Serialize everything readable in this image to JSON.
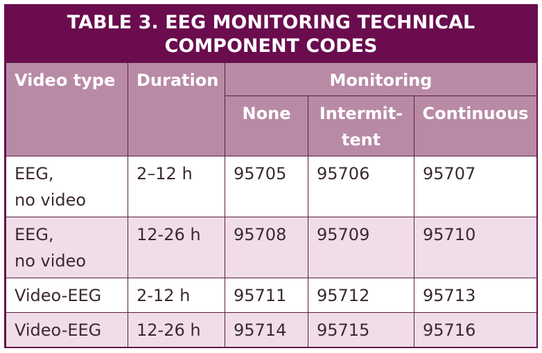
{
  "title": {
    "line1": "TABLE 3. EEG MONITORING TECHNICAL",
    "line2": "COMPONENT CODES"
  },
  "headers": {
    "video_type": "Video type",
    "duration": "Duration",
    "monitoring": "Monitoring",
    "none": "None",
    "intermittent_line1": "Intermit-",
    "intermittent_line2": "tent",
    "continuous": "Continuous"
  },
  "rows": [
    {
      "video_type_line1": "EEG,",
      "video_type_line2": "no video",
      "duration": "2–12 h",
      "none": "95705",
      "intermittent": "95706",
      "continuous": "95707"
    },
    {
      "video_type_line1": "EEG,",
      "video_type_line2": "no video",
      "duration": "12-26 h",
      "none": "95708",
      "intermittent": "95709",
      "continuous": "95710"
    },
    {
      "video_type_line1": "Video-EEG",
      "video_type_line2": "",
      "duration": "2-12 h",
      "none": "95711",
      "intermittent": "95712",
      "continuous": "95713"
    },
    {
      "video_type_line1": "Video-EEG",
      "video_type_line2": "",
      "duration": "12-26 h",
      "none": "95714",
      "intermittent": "95715",
      "continuous": "95716"
    }
  ],
  "colors": {
    "title_background": "#6a0c4e",
    "header_background": "#b98aa6",
    "shaded_row": "#f0dde7"
  }
}
